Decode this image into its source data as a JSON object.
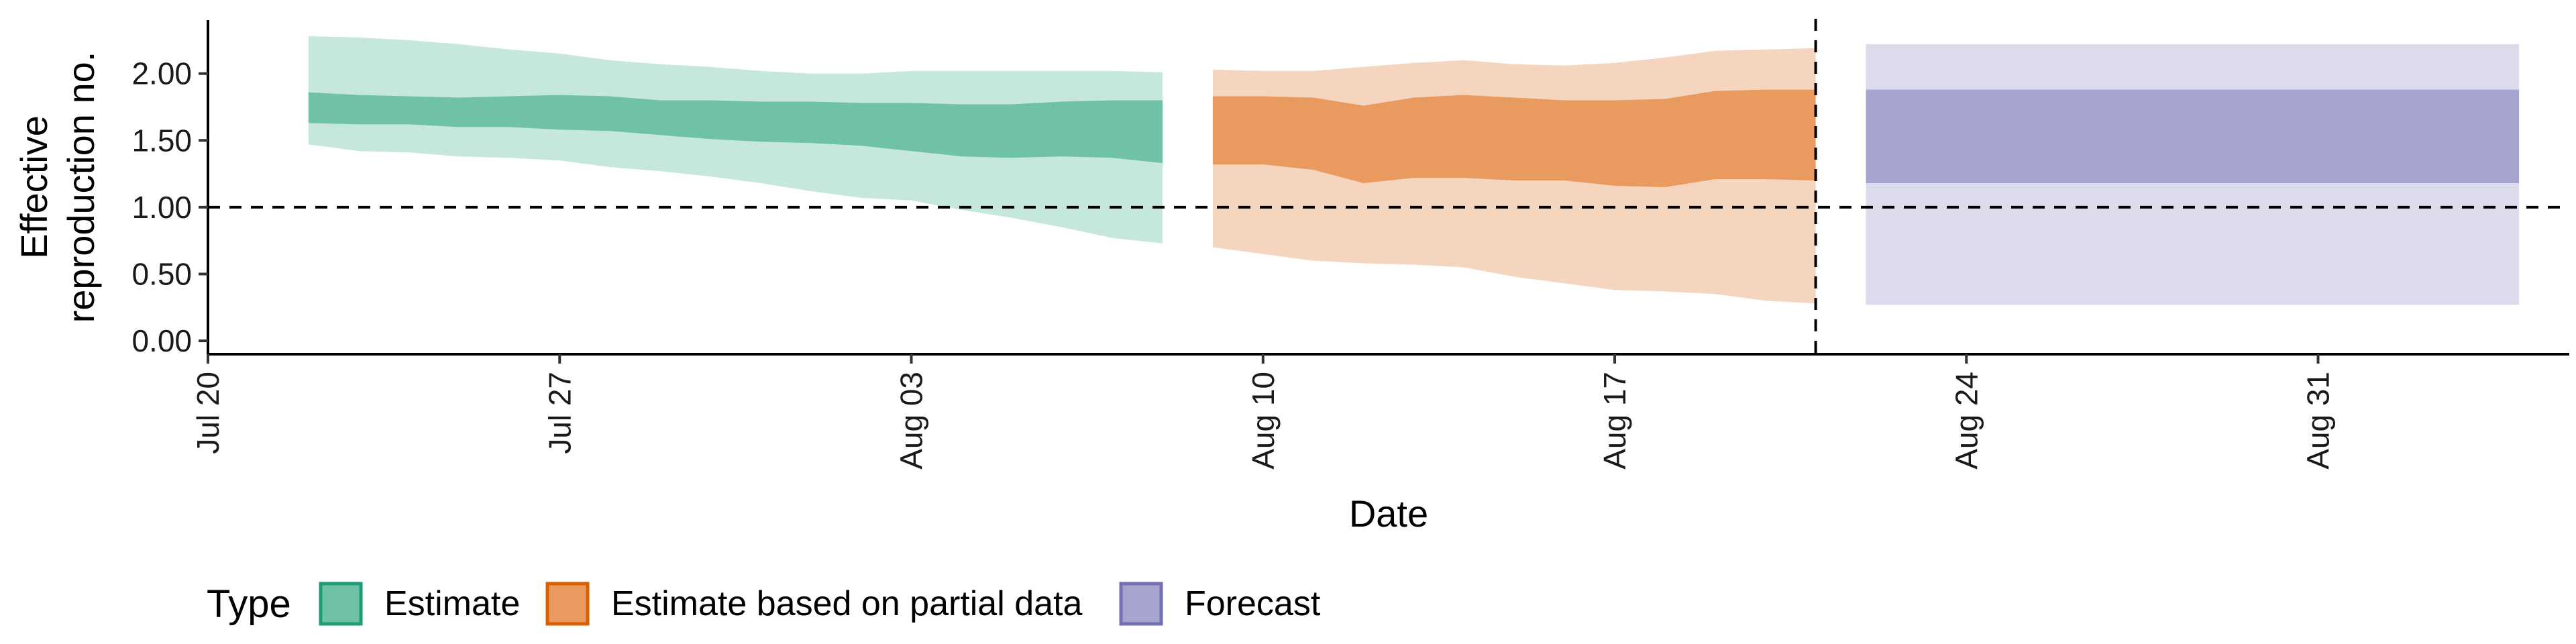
{
  "chart_data": {
    "type": "area",
    "xlabel": "Date",
    "ylabel_lines": [
      "Effective",
      "reproduction no."
    ],
    "y_ticks": [
      "0.00",
      "0.50",
      "1.00",
      "1.50",
      "2.00"
    ],
    "x_ticks": [
      {
        "date": "2020-07-20",
        "label": "Jul 20"
      },
      {
        "date": "2020-07-27",
        "label": "Jul 27"
      },
      {
        "date": "2020-08-03",
        "label": "Aug 03"
      },
      {
        "date": "2020-08-10",
        "label": "Aug 10"
      },
      {
        "date": "2020-08-17",
        "label": "Aug 17"
      },
      {
        "date": "2020-08-24",
        "label": "Aug 24"
      },
      {
        "date": "2020-08-31",
        "label": "Aug 31"
      }
    ],
    "xlim": [
      "2020-07-20",
      "2020-09-05"
    ],
    "ylim": [
      -0.1,
      2.4
    ],
    "reference_hline": 1.0,
    "reference_vline": "2020-08-21",
    "grid": false,
    "series": [
      {
        "name": "Estimate",
        "color": "#1b9e77",
        "fill_outer": "#c6e8dc",
        "fill_inner": "#6fc2a6",
        "dates": [
          "2020-07-22",
          "2020-07-23",
          "2020-07-24",
          "2020-07-25",
          "2020-07-26",
          "2020-07-27",
          "2020-07-28",
          "2020-07-29",
          "2020-07-30",
          "2020-07-31",
          "2020-08-01",
          "2020-08-02",
          "2020-08-03",
          "2020-08-04",
          "2020-08-05",
          "2020-08-06",
          "2020-08-07",
          "2020-08-08"
        ],
        "lower90": [
          1.47,
          1.42,
          1.41,
          1.38,
          1.37,
          1.35,
          1.3,
          1.27,
          1.23,
          1.18,
          1.12,
          1.07,
          1.05,
          0.98,
          0.92,
          0.85,
          0.77,
          0.73
        ],
        "lower50": [
          1.63,
          1.62,
          1.62,
          1.6,
          1.6,
          1.58,
          1.57,
          1.54,
          1.51,
          1.49,
          1.48,
          1.46,
          1.42,
          1.38,
          1.37,
          1.38,
          1.37,
          1.33
        ],
        "upper50": [
          1.86,
          1.84,
          1.83,
          1.82,
          1.83,
          1.84,
          1.83,
          1.8,
          1.8,
          1.79,
          1.79,
          1.78,
          1.78,
          1.77,
          1.77,
          1.79,
          1.8,
          1.8
        ],
        "upper90": [
          2.28,
          2.27,
          2.25,
          2.22,
          2.18,
          2.15,
          2.1,
          2.07,
          2.05,
          2.02,
          2.0,
          2.0,
          2.02,
          2.02,
          2.02,
          2.02,
          2.02,
          2.01
        ]
      },
      {
        "name": "Estimate based on partial data",
        "color": "#d95f02",
        "fill_outer": "#f6d5bf",
        "fill_inner": "#e99a5f",
        "dates": [
          "2020-08-09",
          "2020-08-10",
          "2020-08-11",
          "2020-08-12",
          "2020-08-13",
          "2020-08-14",
          "2020-08-15",
          "2020-08-16",
          "2020-08-17",
          "2020-08-18",
          "2020-08-19",
          "2020-08-20",
          "2020-08-21"
        ],
        "lower90": [
          0.7,
          0.65,
          0.6,
          0.58,
          0.57,
          0.55,
          0.48,
          0.43,
          0.38,
          0.37,
          0.35,
          0.3,
          0.28
        ],
        "lower50": [
          1.32,
          1.32,
          1.28,
          1.18,
          1.22,
          1.22,
          1.2,
          1.2,
          1.16,
          1.15,
          1.21,
          1.21,
          1.2
        ],
        "upper50": [
          1.83,
          1.83,
          1.82,
          1.76,
          1.82,
          1.84,
          1.82,
          1.8,
          1.8,
          1.81,
          1.87,
          1.88,
          1.88
        ],
        "upper90": [
          2.03,
          2.02,
          2.02,
          2.05,
          2.08,
          2.1,
          2.07,
          2.06,
          2.08,
          2.12,
          2.17,
          2.18,
          2.19
        ]
      },
      {
        "name": "Forecast",
        "color": "#7570b3",
        "fill_outer": "#dcdbec",
        "fill_inner": "#a8a4d0",
        "dates": [
          "2020-08-22",
          "2020-09-04"
        ],
        "lower90": [
          0.27,
          0.27
        ],
        "lower50": [
          1.18,
          1.18
        ],
        "upper50": [
          1.88,
          1.88
        ],
        "upper90": [
          2.22,
          2.22
        ]
      }
    ],
    "legend": {
      "title": "Type",
      "placement": "bottom",
      "items": [
        "Estimate",
        "Estimate based on partial data",
        "Forecast"
      ]
    }
  }
}
